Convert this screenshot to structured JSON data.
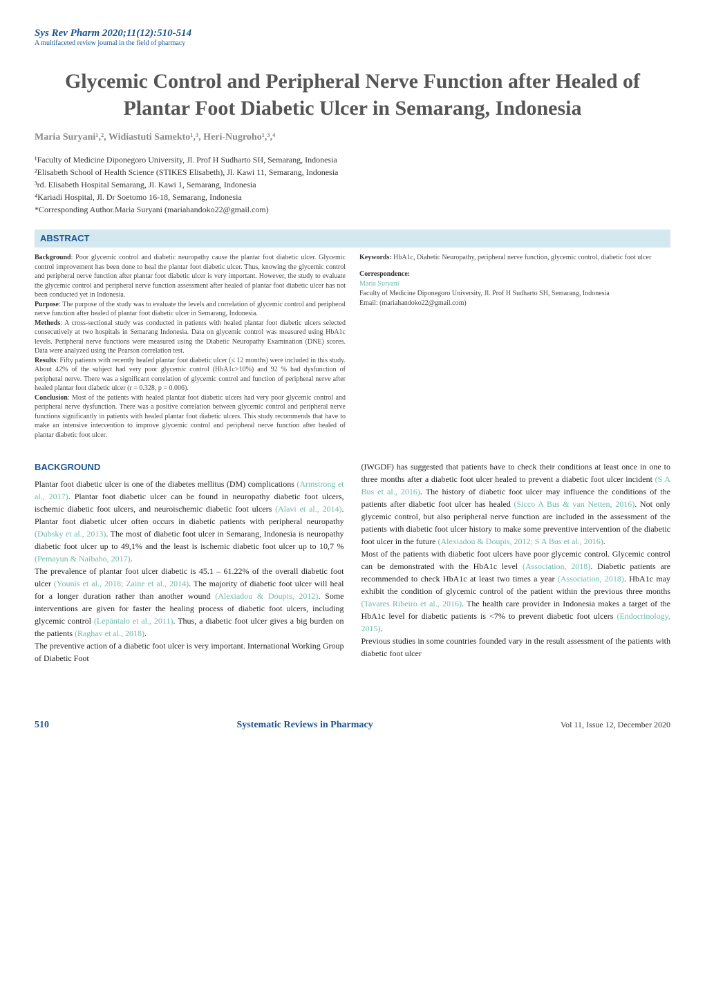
{
  "journal": {
    "title": "Sys Rev Pharm 2020;11(12):510-514",
    "subtitle": "A multifaceted review journal in the field of pharmacy"
  },
  "article": {
    "title": "Glycemic Control and Peripheral Nerve Function after Healed of Plantar Foot Diabetic Ulcer in Semarang, Indonesia",
    "authors": "Maria Suryani¹,², Widiastuti Samekto¹,³, Heri-Nugroho¹,³,⁴"
  },
  "affiliations": {
    "a1": "¹Faculty of Medicine Diponegoro University, Jl. Prof H Sudharto SH, Semarang, Indonesia",
    "a2": "²Elisabeth School of Health Science (STIKES Elisabeth), Jl. Kawi 11, Semarang, Indonesia",
    "a3": "³rd. Elisabeth Hospital Semarang, Jl. Kawi 1, Semarang, Indonesia",
    "a4": "⁴Kariadi Hospital, Jl. Dr Soetomo 16-18, Semarang, Indonesia",
    "corresponding": "*Corresponding Author.Maria Suryani (mariahandoko22@gmail.com)"
  },
  "abstract": {
    "label": "ABSTRACT",
    "background_label": "Background",
    "background": ": Poor glycemic control and diabetic neuropathy cause the plantar foot diabetic ulcer. Glycemic control improvement has been done to heal the plantar foot diabetic ulcer. Thus, knowing the glycemic control and peripheral nerve function after plantar foot diabetic ulcer is very important. However, the study to evaluate the glycemic control and peripheral nerve function assessment after healed of plantar foot diabetic ulcer has not been conducted yet in Indonesia.",
    "purpose_label": "Purpose",
    "purpose": ": The purpose of the study was to evaluate the levels and correlation of glycemic control and peripheral nerve function after healed of plantar foot diabetic ulcer in Semarang, Indonesia.",
    "methods_label": "Methods",
    "methods": ": A cross-sectional study was conducted in patients with healed plantar foot diabetic ulcers selected consecutively at two hospitals in Semarang Indonesia. Data on glycemic control was measured using HbA1c levels. Peripheral nerve functions were measured using the Diabetic Neuropathy Examination (DNE) scores. Data were analyzed using the Pearson correlation test.",
    "results_label": "Results",
    "results": ": Fifty patients with recently healed plantar foot diabetic ulcer (≤ 12 months) were included in this study. About 42% of the subject had very poor glycemic control (HbA1c>10%) and 92 % had dysfunction of peripheral nerve. There was a significant correlation of glycemic control and function of peripheral nerve after healed plantar foot diabetic ulcer (r = 0.328, p = 0.006).",
    "conclusion_label": "Conclusion",
    "conclusion": ": Most of the patients with healed plantar foot diabetic ulcers had very poor glycemic control and peripheral nerve dysfunction. There was a positive correlation between glycemic control and peripheral nerve functions significantly in patients with healed plantar foot diabetic ulcers. This study recommends that have to make an intensive intervention to improve glycemic control and peripheral nerve function after healed of plantar diabetic foot ulcer.",
    "keywords_label": "Keywords:",
    "keywords": " HbA1c, Diabetic Neuropathy, peripheral nerve function, glycemic control, diabetic foot ulcer",
    "correspondence_label": "Correspondence:",
    "correspondence_name": "Maria Suryani",
    "correspondence_addr": "Faculty of Medicine Diponegoro University, Jl. Prof H Sudharto SH, Semarang, Indonesia",
    "correspondence_email": "Email: (mariahandoko22@gmail.com)"
  },
  "body": {
    "heading": "BACKGROUND",
    "left_p1a": "Plantar foot diabetic ulcer is one of the diabetes mellitus (DM) complications ",
    "left_c1": "(Armstrong et al., 2017)",
    "left_p1b": ". Plantar foot diabetic ulcer can be found in neuropathy diabetic foot ulcers, ischemic diabetic foot ulcers, and neuroischemic diabetic foot ulcers ",
    "left_c2": "(Alavi et al., 2014)",
    "left_p1c": ". Plantar foot diabetic ulcer often occurs in diabetic patients with peripheral neuropathy ",
    "left_c3": "(Dubsky et al., 2013)",
    "left_p1d": ". The most of diabetic foot ulcer in Semarang, Indonesia is neuropathy diabetic foot ulcer up to 49,1% and the least is ischemic diabetic foot ulcer up to 10,7 % ",
    "left_c4": "(Pemayun & Naibaho, 2017)",
    "left_p1e": ".",
    "left_p2a": "The prevalence of plantar foot ulcer diabetic is 45.1 – 61.22% of the overall diabetic foot ulcer ",
    "left_c5": "(Younis et al., 2018; Zaine et al., 2014)",
    "left_p2b": ". The majority of diabetic foot ulcer will heal for a longer duration rather than another wound ",
    "left_c6": "(Alexiadou & Doupis, 2012)",
    "left_p2c": ". Some interventions are given for faster the healing process of diabetic foot ulcers, including glycemic control ",
    "left_c7": "(Lepäntalo et al., 2011)",
    "left_p2d": ". Thus, a diabetic foot ulcer gives a big burden on the patients ",
    "left_c8": "(Raghav et al., 2018)",
    "left_p2e": ".",
    "left_p3": "The preventive action of a diabetic foot ulcer is very important. International Working Group of Diabetic Foot",
    "right_p1a": "(IWGDF) has suggested that patients have to check their conditions at least once in one to three months after a diabetic foot ulcer healed to prevent a diabetic foot ulcer incident ",
    "right_c1": "(S A Bus et al., 2016)",
    "right_p1b": ". The history of diabetic foot ulcer may influence the conditions of the patients after diabetic foot ulcer has healed ",
    "right_c2": "(Sicco A Bus & van Netten, 2016)",
    "right_p1c": ". Not only glycemic control, but also peripheral nerve function are included in the assessment of the patients with diabetic foot ulcer history to make some preventive intervention of the diabetic foot ulcer in the future ",
    "right_c3": "(Alexiadou & Doupis, 2012; S A Bus et al., 2016)",
    "right_p1d": ".",
    "right_p2a": "Most of the patients with diabetic foot ulcers have poor glycemic control. Glycemic control can be demonstrated with the HbA1c level ",
    "right_c4": "(Association, 2018)",
    "right_p2b": ". Diabetic patients are recommended to check HbA1c at least two times a year ",
    "right_c5": "(Association, 2018)",
    "right_p2c": ". HbA1c may exhibit the condition of glycemic control of the patient within the previous three months ",
    "right_c6": "(Tavares Ribeiro et al., 2016)",
    "right_p2d": ". The health care provider in Indonesia makes a target of the HbA1c level for diabetic patients is <7% to prevent diabetic foot ulcers ",
    "right_c7": "(Endocrinology, 2015)",
    "right_p2e": ".",
    "right_p3": "Previous studies in some countries founded vary in the result assessment of the patients with diabetic foot ulcer"
  },
  "footer": {
    "page": "510",
    "center": "Systematic Reviews in Pharmacy",
    "right": "Vol 11, Issue 12, December 2020"
  },
  "colors": {
    "blue": "#1a5490",
    "teal": "#6bb8a8",
    "abstract_bg": "#d4e8f0",
    "gray_title": "#555555"
  }
}
